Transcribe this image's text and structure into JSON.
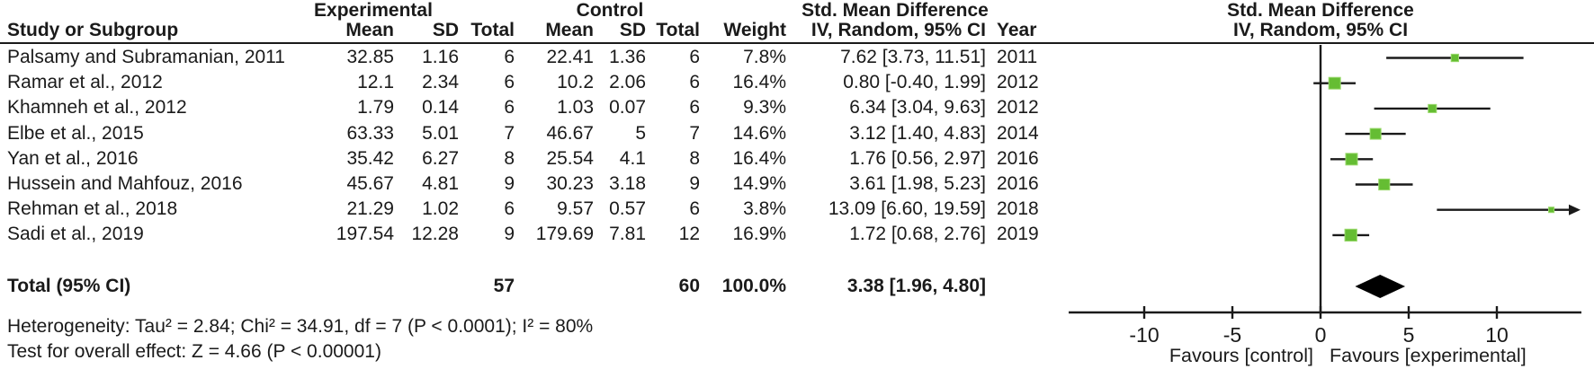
{
  "header": {
    "experimental": "Experimental",
    "control": "Control",
    "smd": "Std. Mean Difference"
  },
  "table": {
    "columns": {
      "study": "Study or Subgroup",
      "mean": "Mean",
      "sd": "SD",
      "total": "Total",
      "weight": "Weight",
      "ci": "IV, Random, 95% CI",
      "year": "Year"
    },
    "rows": [
      {
        "study": "Palsamy and Subramanian, 2011",
        "e_mean": "32.85",
        "e_sd": "1.16",
        "e_total": "6",
        "c_mean": "22.41",
        "c_sd": "1.36",
        "c_total": "6",
        "weight": "7.8%",
        "ci": "7.62 [3.73, 11.51]",
        "year": "2011"
      },
      {
        "study": "Ramar et al., 2012",
        "e_mean": "12.1",
        "e_sd": "2.34",
        "e_total": "6",
        "c_mean": "10.2",
        "c_sd": "2.06",
        "c_total": "6",
        "weight": "16.4%",
        "ci": "0.80 [-0.40, 1.99]",
        "year": "2012"
      },
      {
        "study": "Khamneh et al., 2012",
        "e_mean": "1.79",
        "e_sd": "0.14",
        "e_total": "6",
        "c_mean": "1.03",
        "c_sd": "0.07",
        "c_total": "6",
        "weight": "9.3%",
        "ci": "6.34 [3.04, 9.63]",
        "year": "2012"
      },
      {
        "study": "Elbe et al., 2015",
        "e_mean": "63.33",
        "e_sd": "5.01",
        "e_total": "7",
        "c_mean": "46.67",
        "c_sd": "5",
        "c_total": "7",
        "weight": "14.6%",
        "ci": "3.12 [1.40, 4.83]",
        "year": "2014"
      },
      {
        "study": "Yan et al., 2016",
        "e_mean": "35.42",
        "e_sd": "6.27",
        "e_total": "8",
        "c_mean": "25.54",
        "c_sd": "4.1",
        "c_total": "8",
        "weight": "16.4%",
        "ci": "1.76 [0.56, 2.97]",
        "year": "2016"
      },
      {
        "study": "Hussein and Mahfouz, 2016",
        "e_mean": "45.67",
        "e_sd": "4.81",
        "e_total": "9",
        "c_mean": "30.23",
        "c_sd": "3.18",
        "c_total": "9",
        "weight": "14.9%",
        "ci": "3.61 [1.98, 5.23]",
        "year": "2016"
      },
      {
        "study": "Rehman et al., 2018",
        "e_mean": "21.29",
        "e_sd": "1.02",
        "e_total": "6",
        "c_mean": "9.57",
        "c_sd": "0.57",
        "c_total": "6",
        "weight": "3.8%",
        "ci": "13.09 [6.60, 19.59]",
        "year": "2018"
      },
      {
        "study": "Sadi et al., 2019",
        "e_mean": "197.54",
        "e_sd": "12.28",
        "e_total": "9",
        "c_mean": "179.69",
        "c_sd": "7.81",
        "c_total": "12",
        "weight": "16.9%",
        "ci": "1.72 [0.68, 2.76]",
        "year": "2019"
      }
    ],
    "total": {
      "label": "Total (95% CI)",
      "e_total": "57",
      "c_total": "60",
      "weight": "100.0%",
      "ci": "3.38 [1.96, 4.80]"
    }
  },
  "footer": {
    "heterogeneity": "Heterogeneity: Tau² = 2.84; Chi² = 34.91, df = 7 (P < 0.0001); I² = 80%",
    "overall": "Test for overall effect: Z = 4.66 (P < 0.00001)"
  },
  "plot": {
    "smd": "Std. Mean Difference",
    "ci": "IV, Random, 95% CI"
  },
  "colors": {
    "square": "#65bd33",
    "square_border": "#9ad96d",
    "line": "#1a1a1a",
    "diamond": "#000000"
  },
  "chart_data": {
    "type": "scatter",
    "subtype": "forest-plot",
    "title": "Std. Mean Difference  IV, Random, 95% CI",
    "xlabel_left": "Favours [control]",
    "xlabel_right": "Favours [experimental]",
    "xlim": [
      -14.3,
      14.8
    ],
    "xticks": [
      -10,
      -5,
      0,
      5,
      10
    ],
    "grid": false,
    "studies": [
      {
        "name": "Palsamy and Subramanian, 2011",
        "year": 2011,
        "est": 7.62,
        "lo": 3.73,
        "hi": 11.51,
        "weight_pct": 7.8
      },
      {
        "name": "Ramar et al., 2012",
        "year": 2012,
        "est": 0.8,
        "lo": -0.4,
        "hi": 1.99,
        "weight_pct": 16.4
      },
      {
        "name": "Khamneh et al., 2012",
        "year": 2012,
        "est": 6.34,
        "lo": 3.04,
        "hi": 9.63,
        "weight_pct": 9.3
      },
      {
        "name": "Elbe et al., 2015",
        "year": 2014,
        "est": 3.12,
        "lo": 1.4,
        "hi": 4.83,
        "weight_pct": 14.6
      },
      {
        "name": "Yan et al., 2016",
        "year": 2016,
        "est": 1.76,
        "lo": 0.56,
        "hi": 2.97,
        "weight_pct": 16.4
      },
      {
        "name": "Hussein and Mahfouz, 2016",
        "year": 2016,
        "est": 3.61,
        "lo": 1.98,
        "hi": 5.23,
        "weight_pct": 14.9
      },
      {
        "name": "Rehman et al., 2018",
        "year": 2018,
        "est": 13.09,
        "lo": 6.6,
        "hi": 19.59,
        "weight_pct": 3.8
      },
      {
        "name": "Sadi et al., 2019",
        "year": 2019,
        "est": 1.72,
        "lo": 0.68,
        "hi": 2.76,
        "weight_pct": 16.9
      }
    ],
    "total": {
      "label": "Total (95% CI)",
      "est": 3.38,
      "lo": 1.96,
      "hi": 4.8,
      "weight_pct": 100.0
    }
  }
}
